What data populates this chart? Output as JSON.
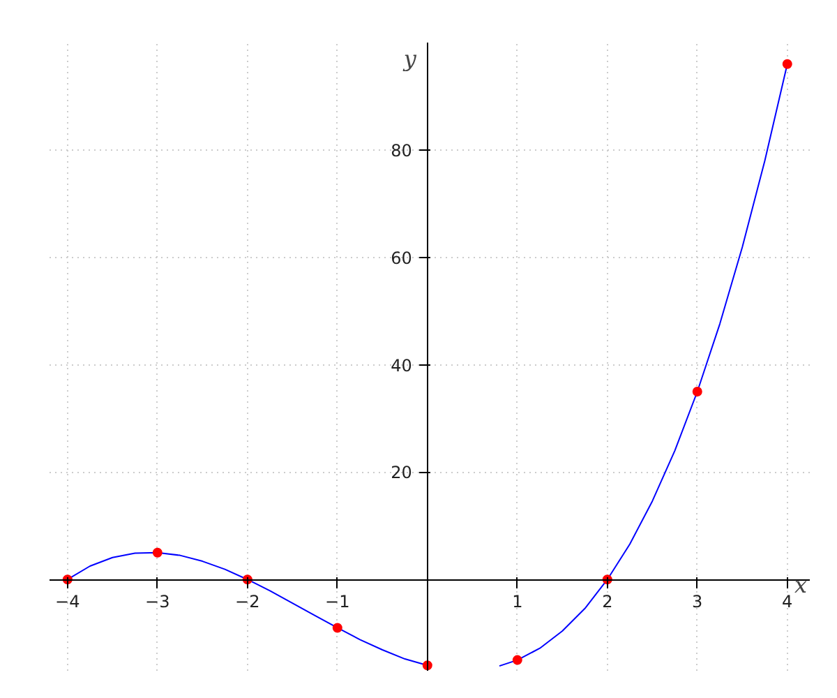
{
  "chart_data": {
    "type": "line",
    "xlabel": "x",
    "ylabel": "y",
    "xlim": [
      -4.2,
      4.25
    ],
    "ylim": [
      -17,
      100
    ],
    "xticks": [
      -4,
      -3,
      -2,
      -1,
      1,
      2,
      3,
      4
    ],
    "yticks": [
      20,
      40,
      60,
      80
    ],
    "grid": true,
    "series": [
      {
        "color": "#0000ff",
        "marker": "none",
        "x": [
          -4,
          -3.75,
          -3.5,
          -3.25,
          -3,
          -2.75,
          -2.5,
          -2.25,
          -2,
          -1.75,
          -1.5,
          -1.25,
          -1,
          -0.75,
          -0.5,
          -0.25,
          0,
          0.4,
          0.8,
          1,
          1.25,
          1.5,
          1.75,
          2,
          2.25,
          2.5,
          2.75,
          3,
          3.25,
          3.5,
          3.75,
          4
        ],
        "values": [
          0,
          2.5,
          4.1,
          4.9,
          5,
          4.5,
          3.4,
          1.9,
          0,
          -2.1,
          -4.4,
          -6.7,
          -9,
          -11.2,
          -13.1,
          -14.8,
          -16,
          null,
          -16.1,
          -15,
          -12.8,
          -9.6,
          -5.4,
          0,
          6.6,
          14.6,
          24,
          35,
          47.6,
          61.9,
          78,
          96
        ]
      },
      {
        "type": "scatter",
        "color": "#ff0000",
        "marker": "circle",
        "x": [
          -4,
          -3,
          -2,
          -1,
          0,
          1,
          2,
          3,
          4
        ],
        "values": [
          0,
          5,
          0,
          -9,
          -16,
          -15,
          0,
          35,
          96
        ]
      }
    ]
  }
}
